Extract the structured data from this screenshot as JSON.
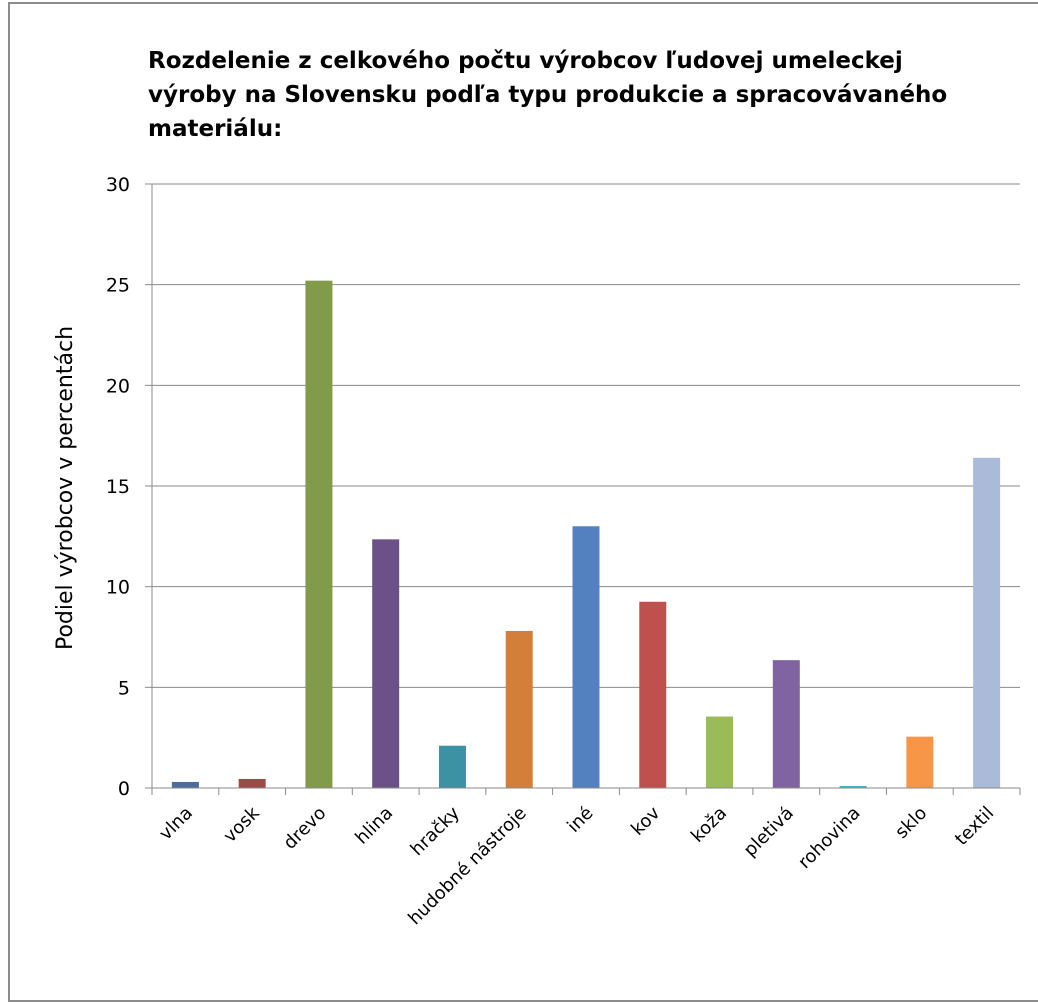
{
  "chart_data": {
    "type": "bar",
    "title": "Rozdelenie z celkového počtu výrobcov ľudovej umeleckej výroby na Slovensku podľa typu produkcie a spracovávaného materiálu:",
    "xlabel": "",
    "ylabel": "Podiel výrobcov v percentách",
    "ylim": [
      0,
      30
    ],
    "yticks": [
      0,
      5,
      10,
      15,
      20,
      25,
      30
    ],
    "grid": true,
    "legend": "none",
    "categories": [
      "vlna",
      "vosk",
      "drevo",
      "hlina",
      "hračky",
      "hudobné nástroje",
      "iné",
      "kov",
      "koža",
      "pletivá",
      "rohovina",
      "sklo",
      "textil"
    ],
    "values": [
      0.3,
      0.45,
      25.2,
      12.35,
      2.1,
      7.8,
      13.0,
      9.25,
      3.55,
      6.35,
      0.1,
      2.55,
      16.4
    ],
    "colors": [
      "#4a6d9b",
      "#a04a48",
      "#819b4b",
      "#6b5188",
      "#3d91a4",
      "#d37f3a",
      "#5381bf",
      "#c0504d",
      "#9bbb59",
      "#8064a2",
      "#4bacc6",
      "#f79646",
      "#aabbd9"
    ]
  }
}
